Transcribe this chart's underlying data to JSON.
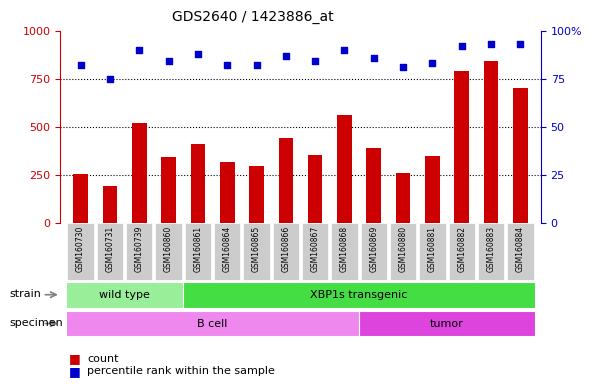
{
  "title": "GDS2640 / 1423886_at",
  "samples": [
    "GSM160730",
    "GSM160731",
    "GSM160739",
    "GSM160860",
    "GSM160861",
    "GSM160864",
    "GSM160865",
    "GSM160866",
    "GSM160867",
    "GSM160868",
    "GSM160869",
    "GSM160880",
    "GSM160881",
    "GSM160882",
    "GSM160883",
    "GSM160884"
  ],
  "counts": [
    255,
    190,
    520,
    340,
    410,
    315,
    295,
    440,
    355,
    560,
    390,
    260,
    345,
    790,
    840,
    700
  ],
  "percentiles": [
    82,
    75,
    90,
    84,
    88,
    82,
    82,
    87,
    84,
    90,
    86,
    81,
    83,
    92,
    93,
    93
  ],
  "bar_color": "#cc0000",
  "dot_color": "#0000cc",
  "ylim_left": [
    0,
    1000
  ],
  "ylim_right": [
    0,
    100
  ],
  "yticks_left": [
    0,
    250,
    500,
    750,
    1000
  ],
  "yticks_right": [
    0,
    25,
    50,
    75,
    100
  ],
  "grid_values": [
    250,
    500,
    750
  ],
  "strain_groups": [
    {
      "label": "wild type",
      "start": 0,
      "end": 4,
      "color": "#99ee99"
    },
    {
      "label": "XBP1s transgenic",
      "start": 4,
      "end": 16,
      "color": "#44dd44"
    }
  ],
  "specimen_groups": [
    {
      "label": "B cell",
      "start": 0,
      "end": 10,
      "color": "#ee88ee"
    },
    {
      "label": "tumor",
      "start": 10,
      "end": 16,
      "color": "#dd44dd"
    }
  ],
  "strain_label": "strain",
  "specimen_label": "specimen",
  "legend_count_label": "count",
  "legend_percentile_label": "percentile rank within the sample",
  "tick_bg_color": "#cccccc",
  "left_axis_color": "#cc0000",
  "right_axis_color": "#0000cc",
  "bar_width": 0.5
}
